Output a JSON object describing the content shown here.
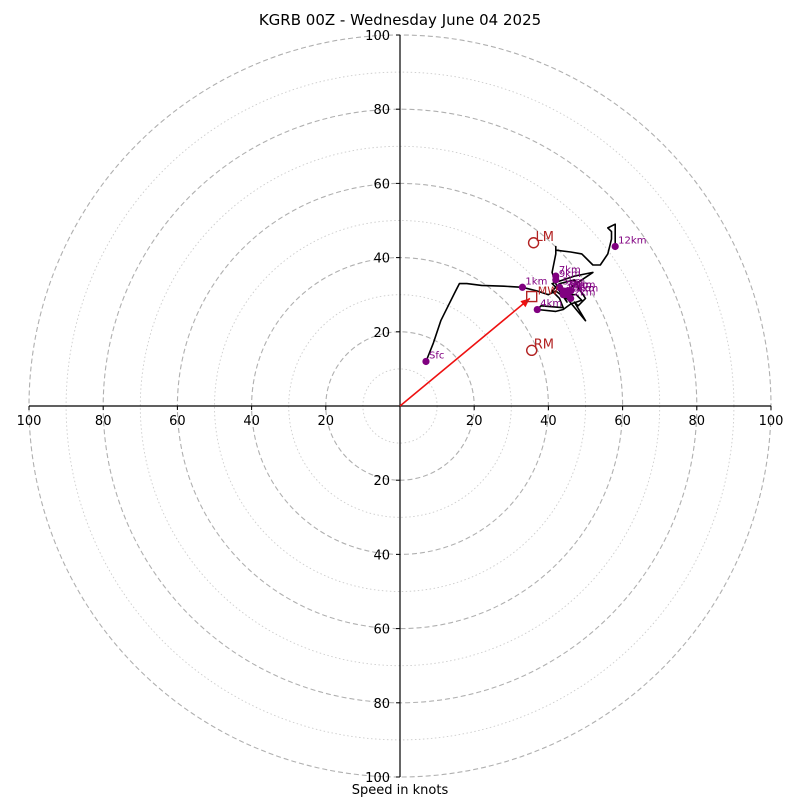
{
  "title": "KGRB 00Z - Wednesday June 04 2025",
  "axis_label": "Speed in knots",
  "colors": {
    "hodograph": "#000000",
    "height_marker": "#800080",
    "storm_motion": "#b22222",
    "mean_wind_vector": "#ee1111",
    "major_ring": "#b0b0b0",
    "minor_ring": "#cccccc"
  },
  "chart_data": {
    "type": "line",
    "chart_kind": "hodograph",
    "title": "KGRB 00Z - Wednesday June 04 2025",
    "xlabel": "Speed in knots",
    "ylabel": "",
    "xlim": [
      -100,
      100
    ],
    "ylim": [
      -100,
      100
    ],
    "grid": "concentric rings every 10 kt (dashed at 20 kt, dotted between)",
    "ring_labels": [
      20,
      40,
      60,
      80,
      100
    ],
    "tick_values": [
      -100,
      -80,
      -60,
      -40,
      -20,
      20,
      40,
      60,
      80,
      100
    ],
    "hodograph": [
      [
        7,
        12
      ],
      [
        9,
        17
      ],
      [
        11,
        23
      ],
      [
        13,
        27
      ],
      [
        15,
        31
      ],
      [
        16,
        33
      ],
      [
        18,
        33
      ],
      [
        22,
        32.5
      ],
      [
        28,
        32.3
      ],
      [
        33,
        32
      ],
      [
        37,
        31
      ],
      [
        40,
        30
      ],
      [
        42,
        31
      ],
      [
        44,
        29.5
      ],
      [
        46,
        30
      ],
      [
        47.5,
        30
      ],
      [
        49,
        28.5
      ],
      [
        46,
        27.5
      ],
      [
        44,
        26
      ],
      [
        42,
        25.5
      ],
      [
        37,
        26
      ],
      [
        38,
        27
      ],
      [
        44,
        26.5
      ],
      [
        43,
        29
      ],
      [
        41,
        31
      ],
      [
        43,
        33
      ],
      [
        47,
        34
      ],
      [
        48,
        32
      ],
      [
        50,
        29
      ],
      [
        48,
        27
      ],
      [
        47,
        28
      ],
      [
        50,
        23
      ],
      [
        45,
        29
      ],
      [
        41,
        33
      ],
      [
        44,
        34
      ],
      [
        47,
        35
      ],
      [
        52,
        36
      ],
      [
        46,
        32
      ],
      [
        44,
        30
      ],
      [
        45,
        28
      ],
      [
        43,
        31
      ],
      [
        42,
        33
      ],
      [
        41,
        36
      ],
      [
        42,
        41
      ],
      [
        42,
        43
      ],
      [
        42,
        42
      ],
      [
        46,
        41.5
      ],
      [
        49,
        41
      ],
      [
        52,
        38
      ],
      [
        54,
        38
      ],
      [
        56,
        41
      ],
      [
        57,
        45
      ],
      [
        57,
        47
      ],
      [
        56,
        48
      ],
      [
        58,
        49
      ],
      [
        58,
        46
      ],
      [
        58,
        43
      ]
    ],
    "height_markers": [
      {
        "label": "Sfc",
        "u": 7,
        "v": 12
      },
      {
        "label": "1km",
        "u": 33,
        "v": 32
      },
      {
        "label": "2km",
        "u": 46,
        "v": 29
      },
      {
        "label": "3km",
        "u": 44,
        "v": 31
      },
      {
        "label": "4km",
        "u": 37,
        "v": 26
      },
      {
        "label": "5km",
        "u": 43,
        "v": 32
      },
      {
        "label": "6km",
        "u": 45,
        "v": 31
      },
      {
        "label": "7km",
        "u": 42,
        "v": 35
      },
      {
        "label": "8km",
        "u": 46,
        "v": 31
      },
      {
        "label": "9km",
        "u": 42,
        "v": 34
      },
      {
        "label": "10km",
        "u": 44,
        "v": 30
      },
      {
        "label": "11km",
        "u": 45,
        "v": 30
      },
      {
        "label": "12km",
        "u": 58,
        "v": 43
      }
    ],
    "storm_motion": [
      {
        "label": "LM",
        "u": 36,
        "v": 44
      },
      {
        "label": "RM",
        "u": 35.5,
        "v": 15
      }
    ],
    "mean_wind": {
      "label": "MW",
      "u": 35.5,
      "v": 29.5
    },
    "mean_wind_vector": {
      "from": [
        0,
        0
      ],
      "to": [
        35,
        29
      ]
    }
  }
}
